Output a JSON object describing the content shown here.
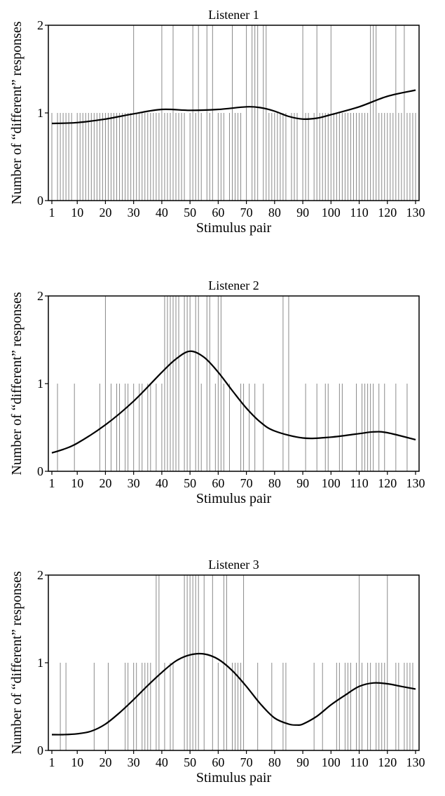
{
  "chart_data": [
    {
      "type": "bar",
      "title": "Listener 1",
      "xlabel": "Stimulus pair",
      "ylabel": "Number of “different” responses",
      "xlim": [
        1,
        130
      ],
      "ylim": [
        0,
        2
      ],
      "x_ticks": [
        "1",
        "10",
        "20",
        "30",
        "40",
        "50",
        "60",
        "70",
        "80",
        "90",
        "100",
        "110",
        "120",
        "130"
      ],
      "y_ticks": [
        "0",
        "1",
        "2"
      ],
      "grid": false,
      "series": [
        {
          "kind": "stem",
          "x": [
            1,
            3,
            4,
            5,
            6,
            7,
            8,
            10,
            11,
            12,
            13,
            14,
            15,
            16,
            17,
            18,
            19,
            20,
            21,
            22,
            23,
            24,
            25,
            26,
            27,
            28,
            29,
            30,
            31,
            32,
            33,
            34,
            35,
            36,
            37,
            38,
            39,
            40,
            41,
            42,
            43,
            44,
            45,
            46,
            47,
            48,
            50,
            51,
            52,
            53,
            54,
            56,
            57,
            58,
            60,
            61,
            62,
            64,
            65,
            66,
            67,
            68,
            70,
            72,
            73,
            74,
            76,
            77,
            78,
            79,
            80,
            81,
            82,
            83,
            84,
            86,
            87,
            88,
            90,
            91,
            92,
            94,
            95,
            96,
            97,
            98,
            99,
            100,
            101,
            102,
            103,
            104,
            105,
            106,
            107,
            108,
            109,
            110,
            111,
            112,
            113,
            114,
            115,
            116,
            117,
            118,
            119,
            120,
            121,
            122,
            123,
            124,
            125,
            126,
            127,
            128,
            129,
            130
          ],
          "y": [
            1,
            1,
            1,
            1,
            1,
            1,
            1,
            1,
            1,
            1,
            1,
            1,
            1,
            1,
            1,
            1,
            1,
            1,
            1,
            1,
            1,
            1,
            1,
            1,
            1,
            1,
            1,
            2,
            1,
            1,
            1,
            1,
            1,
            1,
            1,
            1,
            1,
            2,
            1,
            1,
            1,
            2,
            1,
            1,
            1,
            1,
            1,
            2,
            1,
            2,
            1,
            2,
            1,
            2,
            1,
            1,
            1,
            1,
            2,
            1,
            1,
            1,
            2,
            2,
            2,
            2,
            2,
            2,
            1,
            1,
            1,
            1,
            1,
            1,
            1,
            1,
            1,
            1,
            2,
            1,
            1,
            1,
            2,
            1,
            1,
            1,
            1,
            2,
            1,
            1,
            1,
            1,
            1,
            1,
            1,
            1,
            1,
            1,
            1,
            1,
            1,
            2,
            2,
            2,
            1,
            1,
            1,
            1,
            1,
            1,
            2,
            1,
            1,
            2,
            1,
            1,
            1,
            1
          ]
        },
        {
          "kind": "line",
          "x": [
            1,
            10,
            20,
            30,
            40,
            50,
            60,
            70,
            75,
            80,
            85,
            90,
            95,
            100,
            110,
            120,
            130
          ],
          "y": [
            0.88,
            0.89,
            0.93,
            0.99,
            1.04,
            1.03,
            1.04,
            1.07,
            1.06,
            1.02,
            0.96,
            0.93,
            0.94,
            0.98,
            1.07,
            1.19,
            1.26
          ]
        }
      ]
    },
    {
      "type": "bar",
      "title": "Listener 2",
      "xlabel": "Stimulus pair",
      "ylabel": "Number of “different” responses",
      "xlim": [
        1,
        130
      ],
      "ylim": [
        0,
        2
      ],
      "x_ticks": [
        "1",
        "10",
        "20",
        "30",
        "40",
        "50",
        "60",
        "70",
        "80",
        "90",
        "100",
        "110",
        "120",
        "130"
      ],
      "y_ticks": [
        "0",
        "1",
        "2"
      ],
      "grid": false,
      "series": [
        {
          "kind": "stem",
          "x": [
            3,
            9,
            18,
            20,
            22,
            24,
            25,
            27,
            28,
            30,
            32,
            33,
            35,
            36,
            38,
            40,
            41,
            42,
            43,
            44,
            45,
            46,
            48,
            49,
            50,
            52,
            53,
            54,
            56,
            57,
            59,
            60,
            61,
            62,
            64,
            68,
            69,
            71,
            73,
            76,
            83,
            85,
            91,
            95,
            98,
            99,
            103,
            104,
            109,
            111,
            112,
            113,
            114,
            115,
            117,
            119,
            123,
            127
          ],
          "y": [
            1,
            1,
            1,
            2,
            1,
            1,
            1,
            1,
            1,
            1,
            1,
            1,
            1,
            1,
            1,
            1,
            2,
            2,
            2,
            2,
            2,
            2,
            2,
            2,
            2,
            2,
            2,
            1,
            2,
            2,
            1,
            2,
            2,
            1,
            1,
            1,
            1,
            1,
            1,
            1,
            2,
            2,
            1,
            1,
            1,
            1,
            1,
            1,
            1,
            1,
            1,
            1,
            1,
            1,
            1,
            1,
            1,
            1
          ]
        },
        {
          "kind": "line",
          "x": [
            1,
            5,
            10,
            20,
            30,
            40,
            45,
            50,
            55,
            60,
            65,
            70,
            75,
            80,
            90,
            100,
            110,
            115,
            120,
            130
          ],
          "y": [
            0.21,
            0.25,
            0.32,
            0.53,
            0.8,
            1.13,
            1.28,
            1.37,
            1.3,
            1.13,
            0.92,
            0.72,
            0.56,
            0.46,
            0.38,
            0.39,
            0.43,
            0.45,
            0.44,
            0.36
          ]
        }
      ]
    },
    {
      "type": "bar",
      "title": "Listener 3",
      "xlabel": "Stimulus pair",
      "ylabel": "Number of “different” responses",
      "xlim": [
        1,
        130
      ],
      "ylim": [
        0,
        2
      ],
      "x_ticks": [
        "1",
        "10",
        "20",
        "30",
        "40",
        "50",
        "60",
        "70",
        "80",
        "90",
        "100",
        "110",
        "120",
        "130"
      ],
      "y_ticks": [
        "0",
        "1",
        "2"
      ],
      "grid": false,
      "series": [
        {
          "kind": "stem",
          "x": [
            4,
            6,
            16,
            21,
            27,
            28,
            30,
            31,
            33,
            34,
            35,
            36,
            38,
            39,
            41,
            43,
            44,
            48,
            49,
            50,
            51,
            52,
            53,
            55,
            58,
            60,
            62,
            63,
            65,
            66,
            67,
            68,
            69,
            74,
            79,
            83,
            84,
            94,
            97,
            102,
            103,
            105,
            106,
            107,
            109,
            110,
            111,
            113,
            114,
            116,
            117,
            118,
            119,
            120,
            123,
            124,
            126,
            127,
            128,
            129
          ],
          "y": [
            1,
            1,
            1,
            1,
            1,
            1,
            1,
            1,
            1,
            1,
            1,
            1,
            2,
            2,
            1,
            1,
            1,
            2,
            2,
            2,
            2,
            2,
            2,
            2,
            2,
            1,
            2,
            2,
            1,
            1,
            1,
            1,
            2,
            1,
            1,
            1,
            1,
            1,
            1,
            1,
            1,
            1,
            1,
            1,
            1,
            2,
            1,
            1,
            1,
            1,
            1,
            1,
            1,
            2,
            1,
            1,
            1,
            1,
            1,
            1
          ]
        },
        {
          "kind": "line",
          "x": [
            1,
            5,
            10,
            15,
            20,
            25,
            30,
            35,
            40,
            45,
            50,
            55,
            60,
            65,
            70,
            75,
            80,
            85,
            88,
            90,
            95,
            100,
            105,
            110,
            115,
            120,
            125,
            130
          ],
          "y": [
            0.18,
            0.18,
            0.19,
            0.22,
            0.3,
            0.43,
            0.58,
            0.74,
            0.89,
            1.02,
            1.09,
            1.1,
            1.04,
            0.91,
            0.73,
            0.53,
            0.37,
            0.3,
            0.29,
            0.3,
            0.39,
            0.52,
            0.63,
            0.73,
            0.77,
            0.76,
            0.73,
            0.7
          ]
        }
      ]
    }
  ]
}
